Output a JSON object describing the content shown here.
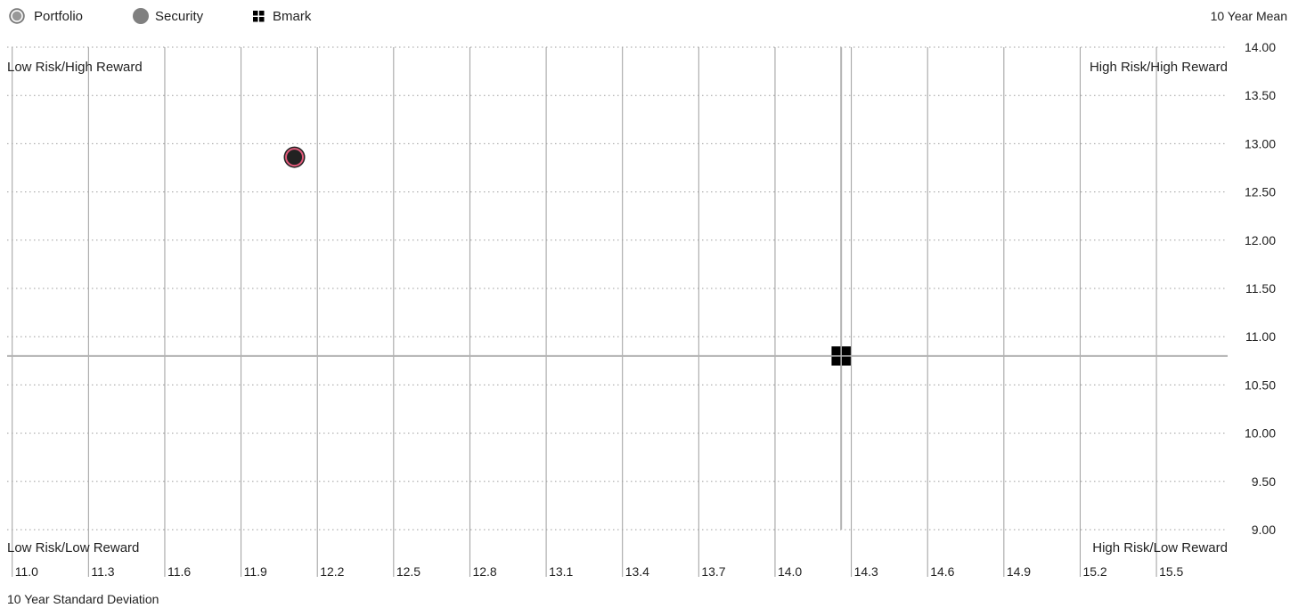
{
  "legend": {
    "portfolio_label": "Portfolio",
    "security_label": "Security",
    "bmark_label": "Bmark"
  },
  "colors": {
    "portfolio_ring": "#e05a7a",
    "portfolio_fill": "#222222",
    "security": "#808080",
    "bmark": "#000000",
    "grid": "#9e9e9e",
    "crosshair": "#b3b3b3"
  },
  "quadrants": {
    "top_left": "Low Risk/High Reward",
    "top_right": "High Risk/High Reward",
    "bottom_left": "Low Risk/Low Reward",
    "bottom_right": "High Risk/Low Reward"
  },
  "chart_data": {
    "type": "scatter",
    "xlabel": "10 Year Standard Deviation",
    "ylabel": "10 Year Mean",
    "xlim": [
      10.98,
      15.78
    ],
    "ylim": [
      9.0,
      14.0
    ],
    "x_ticks": [
      "11.0",
      "11.3",
      "11.6",
      "11.9",
      "12.2",
      "12.5",
      "12.8",
      "13.1",
      "13.4",
      "13.7",
      "14.0",
      "14.3",
      "14.6",
      "14.9",
      "15.2",
      "15.5"
    ],
    "y_ticks": [
      "14.00",
      "13.50",
      "13.00",
      "12.50",
      "12.00",
      "11.50",
      "11.00",
      "10.50",
      "10.00",
      "9.50",
      "9.00"
    ],
    "grid": true,
    "legend_position": "top-left",
    "series": [
      {
        "name": "Portfolio",
        "points": [
          {
            "x": 12.11,
            "y": 12.86
          }
        ]
      },
      {
        "name": "Bmark",
        "points": [
          {
            "x": 14.26,
            "y": 10.8
          }
        ]
      }
    ],
    "crosshair": {
      "x": 14.26,
      "y": 10.8
    }
  }
}
